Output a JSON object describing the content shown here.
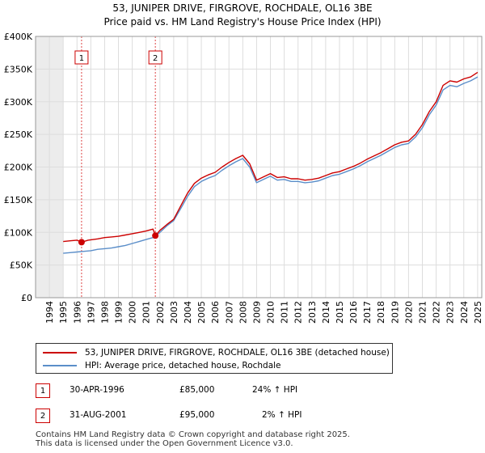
{
  "title_line1": "53, JUNIPER DRIVE, FIRGROVE, ROCHDALE, OL16 3BE",
  "title_line2": "Price paid vs. HM Land Registry's House Price Index (HPI)",
  "colors": {
    "property": "#cc0000",
    "hpi": "#5b8ec9",
    "grid": "#dddddd",
    "marker_line": "#dd4444"
  },
  "chart_data": {
    "type": "line",
    "title": "53, JUNIPER DRIVE, FIRGROVE, ROCHDALE, OL16 3BE",
    "subtitle": "Price paid vs. HM Land Registry's House Price Index (HPI)",
    "xlabel": "",
    "ylabel": "",
    "xlim": [
      1993.0,
      2025.3
    ],
    "ylim": [
      0,
      400000
    ],
    "y_ticks": [
      0,
      50000,
      100000,
      150000,
      200000,
      250000,
      300000,
      350000,
      400000
    ],
    "y_tick_labels": [
      "£0",
      "£50K",
      "£100K",
      "£150K",
      "£200K",
      "£250K",
      "£300K",
      "£350K",
      "£400K"
    ],
    "x_ticks": [
      1994,
      1995,
      1996,
      1997,
      1998,
      1999,
      2000,
      2001,
      2002,
      2003,
      2004,
      2005,
      2006,
      2007,
      2008,
      2009,
      2010,
      2011,
      2012,
      2013,
      2014,
      2015,
      2016,
      2017,
      2018,
      2019,
      2020,
      2021,
      2022,
      2023,
      2024,
      2025
    ],
    "x_tick_labels": [
      "1994",
      "1995",
      "1996",
      "1997",
      "1998",
      "1999",
      "2000",
      "2001",
      "2002",
      "2003",
      "2004",
      "2005",
      "2006",
      "2007",
      "2008",
      "2009",
      "2010",
      "2011",
      "2012",
      "2013",
      "2014",
      "2015",
      "2016",
      "2017",
      "2018",
      "2019",
      "2020",
      "2021",
      "2022",
      "2023",
      "2024",
      "2025"
    ],
    "grid": true,
    "legend_position": "below",
    "series": [
      {
        "name": "53, JUNIPER DRIVE, FIRGROVE, ROCHDALE, OL16 3BE (detached house)",
        "x": [
          1995.0,
          1995.5,
          1996.0,
          1996.33,
          1996.8,
          1997.5,
          1998.0,
          1998.5,
          1999.0,
          1999.5,
          2000.0,
          2000.5,
          2001.0,
          2001.5,
          2001.67,
          2002.0,
          2002.5,
          2003.0,
          2003.5,
          2004.0,
          2004.5,
          2005.0,
          2005.5,
          2006.0,
          2006.5,
          2007.0,
          2007.5,
          2008.0,
          2008.5,
          2009.0,
          2009.5,
          2010.0,
          2010.5,
          2011.0,
          2011.5,
          2012.0,
          2012.5,
          2013.0,
          2013.5,
          2014.0,
          2014.5,
          2015.0,
          2015.5,
          2016.0,
          2016.5,
          2017.0,
          2017.5,
          2018.0,
          2018.5,
          2019.0,
          2019.5,
          2020.0,
          2020.5,
          2021.0,
          2021.5,
          2022.0,
          2022.5,
          2023.0,
          2023.5,
          2024.0,
          2024.5,
          2025.0
        ],
        "values": [
          86000,
          87000,
          88000,
          85000,
          88000,
          90000,
          92000,
          93000,
          94000,
          96000,
          98000,
          100000,
          102000,
          105000,
          95000,
          103000,
          112000,
          120000,
          140000,
          160000,
          175000,
          183000,
          188000,
          192000,
          200000,
          207000,
          213000,
          218000,
          205000,
          180000,
          185000,
          190000,
          184000,
          185000,
          182000,
          182000,
          180000,
          181000,
          183000,
          187000,
          191000,
          193000,
          197000,
          201000,
          206000,
          212000,
          217000,
          222000,
          228000,
          234000,
          238000,
          240000,
          250000,
          265000,
          285000,
          300000,
          325000,
          332000,
          330000,
          335000,
          338000,
          345000
        ]
      },
      {
        "name": "HPI: Average price, detached house, Rochdale",
        "x": [
          1995.0,
          1995.5,
          1996.0,
          1996.5,
          1997.0,
          1997.5,
          1998.0,
          1998.5,
          1999.0,
          1999.5,
          2000.0,
          2000.5,
          2001.0,
          2001.5,
          2002.0,
          2002.5,
          2003.0,
          2003.5,
          2004.0,
          2004.5,
          2005.0,
          2005.5,
          2006.0,
          2006.5,
          2007.0,
          2007.5,
          2008.0,
          2008.5,
          2009.0,
          2009.5,
          2010.0,
          2010.5,
          2011.0,
          2011.5,
          2012.0,
          2012.5,
          2013.0,
          2013.5,
          2014.0,
          2014.5,
          2015.0,
          2015.5,
          2016.0,
          2016.5,
          2017.0,
          2017.5,
          2018.0,
          2018.5,
          2019.0,
          2019.5,
          2020.0,
          2020.5,
          2021.0,
          2021.5,
          2022.0,
          2022.5,
          2023.0,
          2023.5,
          2024.0,
          2024.5,
          2025.0
        ],
        "values": [
          68000,
          69000,
          70000,
          71000,
          72000,
          74000,
          75000,
          76000,
          78000,
          80000,
          83000,
          86000,
          89000,
          92000,
          100000,
          110000,
          118000,
          136000,
          155000,
          170000,
          178000,
          183000,
          187000,
          195000,
          202000,
          208000,
          213000,
          200000,
          176000,
          181000,
          186000,
          180000,
          181000,
          178000,
          178000,
          176000,
          177000,
          179000,
          183000,
          187000,
          189000,
          193000,
          197000,
          202000,
          208000,
          213000,
          218000,
          224000,
          230000,
          234000,
          236000,
          246000,
          260000,
          280000,
          295000,
          318000,
          325000,
          323000,
          328000,
          332000,
          338000
        ]
      }
    ],
    "sales": [
      {
        "label": "1",
        "x": 1996.33,
        "price": 85000
      },
      {
        "label": "2",
        "x": 2001.67,
        "price": 95000
      }
    ]
  },
  "legend": {
    "property_label": "53, JUNIPER DRIVE, FIRGROVE, ROCHDALE, OL16 3BE (detached house)",
    "hpi_label": "HPI: Average price, detached house, Rochdale"
  },
  "sales_table": [
    {
      "label": "1",
      "date": "30-APR-1996",
      "price": "£85,000",
      "hpi": "24% ↑ HPI"
    },
    {
      "label": "2",
      "date": "31-AUG-2001",
      "price": "£95,000",
      "hpi": "2% ↑ HPI"
    }
  ],
  "footer": {
    "line1": "Contains HM Land Registry data © Crown copyright and database right 2025.",
    "line2": "This data is licensed under the Open Government Licence v3.0."
  }
}
